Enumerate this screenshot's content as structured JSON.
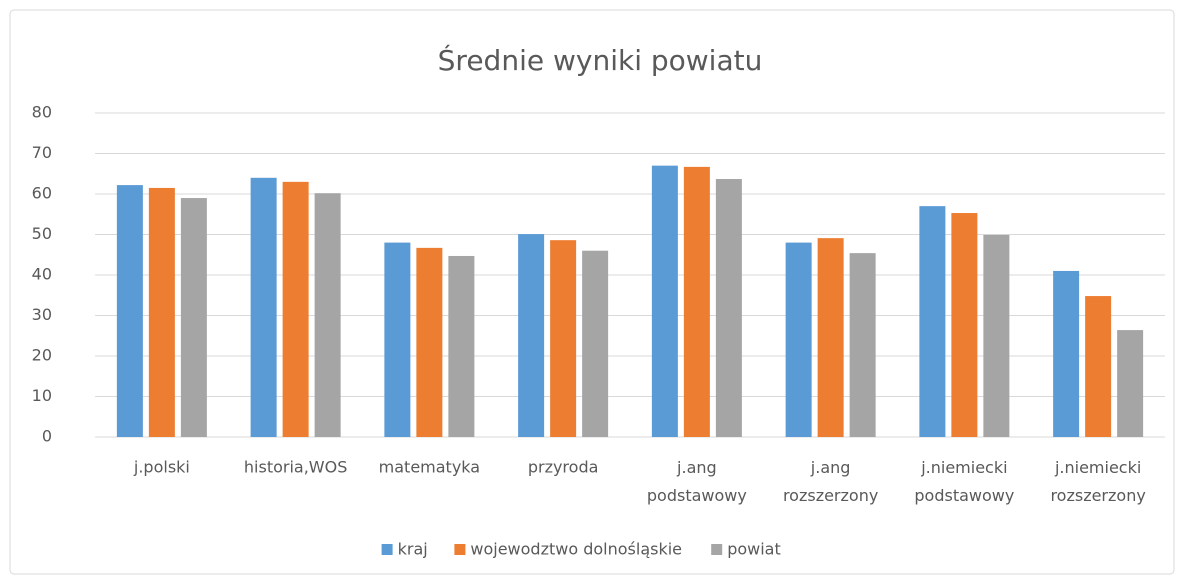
{
  "chart_data": {
    "type": "bar",
    "title": "Średnie wyniki powiatu",
    "categories": [
      "j.polski",
      "historia,WOS",
      "matematyka",
      "przyroda",
      "j.ang podstawowy",
      "j.ang rozszerzony",
      "j.niemiecki podstawowy",
      "j.niemiecki rozszerzony"
    ],
    "series": [
      {
        "name": "kraj",
        "color": "#5b9bd5",
        "values": [
          62.2,
          64,
          48,
          50.1,
          67,
          48,
          57,
          41
        ]
      },
      {
        "name": "wojewodztwo dolnośląskie",
        "color": "#ed7d31",
        "values": [
          61.5,
          63,
          46.7,
          48.6,
          66.7,
          49.1,
          55.3,
          34.8
        ]
      },
      {
        "name": "powiat",
        "color": "#a5a5a5",
        "values": [
          59,
          60.2,
          44.7,
          46,
          63.7,
          45.4,
          49.9,
          26.4
        ]
      }
    ],
    "ylim": [
      0,
      80
    ],
    "yticks": [
      0,
      10,
      20,
      30,
      40,
      50,
      60,
      70,
      80
    ],
    "grid": true,
    "legend": "bottom"
  }
}
